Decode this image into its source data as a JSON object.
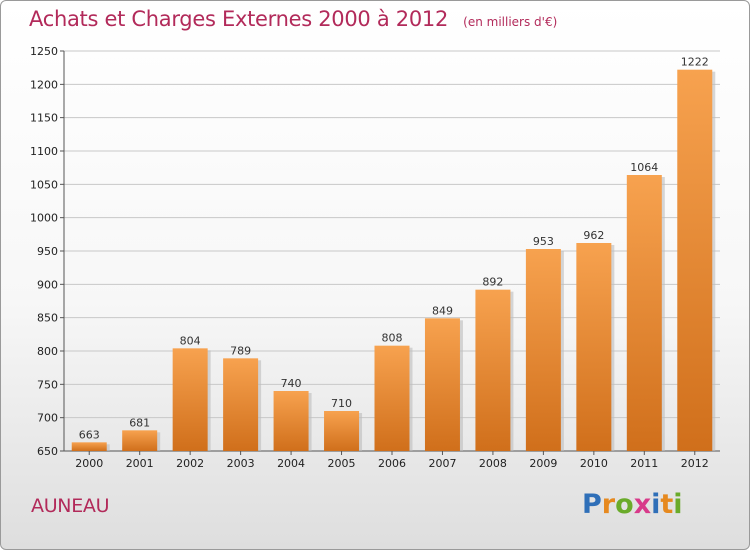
{
  "header": {
    "title": "Achats et Charges Externes 2000 à 2012",
    "subtitle": "(en milliers d'€)"
  },
  "footer": {
    "city": "AUNEAU",
    "logo": "Proxiti",
    "logo_letters": [
      {
        "ch": "P",
        "color": "#2f6fb8"
      },
      {
        "ch": "r",
        "color": "#e6891f"
      },
      {
        "ch": "o",
        "color": "#6aab2a"
      },
      {
        "ch": "x",
        "color": "#d83a8a"
      },
      {
        "ch": "i",
        "color": "#2f6fb8"
      },
      {
        "ch": "t",
        "color": "#e6891f"
      },
      {
        "ch": "i",
        "color": "#6aab2a"
      }
    ]
  },
  "colors": {
    "bar_light": "#f7a24f",
    "bar_dark": "#d06f1b",
    "title": "#b22a5a",
    "grid": "#c8c8c8"
  },
  "chart_data": {
    "type": "bar",
    "title": "Achats et Charges Externes 2000 à 2012",
    "subtitle": "(en milliers d'€)",
    "categories": [
      "2000",
      "2001",
      "2002",
      "2003",
      "2004",
      "2005",
      "2006",
      "2007",
      "2008",
      "2009",
      "2010",
      "2011",
      "2012"
    ],
    "values": [
      663,
      681,
      804,
      789,
      740,
      710,
      808,
      849,
      892,
      953,
      962,
      1064,
      1222
    ],
    "ylim": [
      650,
      1250
    ],
    "yticks": [
      650,
      700,
      750,
      800,
      850,
      900,
      950,
      1000,
      1050,
      1100,
      1150,
      1200,
      1250
    ],
    "grid": true,
    "data_labels": true
  }
}
